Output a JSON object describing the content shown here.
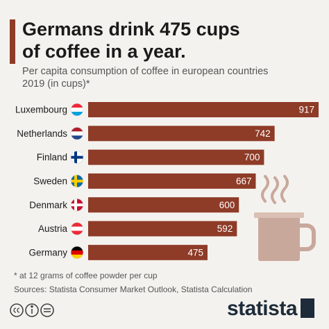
{
  "chart_data": {
    "type": "bar",
    "orientation": "horizontal",
    "title": [
      "Germans drink 475 cups",
      "of coffee in a year."
    ],
    "subtitle": [
      "Per capita consumption of coffee in european countries",
      "2019 (in cups)*"
    ],
    "categories": [
      "Luxembourg",
      "Netherlands",
      "Finland",
      "Sweden",
      "Denmark",
      "Austria",
      "Germany"
    ],
    "values": [
      917,
      742,
      700,
      667,
      600,
      592,
      475
    ],
    "color": "#8e3b27",
    "notes": [
      "* at 12 grams of coffee powder per cup",
      "Sources: Statista Consumer Market Outlook, Statista Calculation"
    ],
    "brand": "statista"
  }
}
